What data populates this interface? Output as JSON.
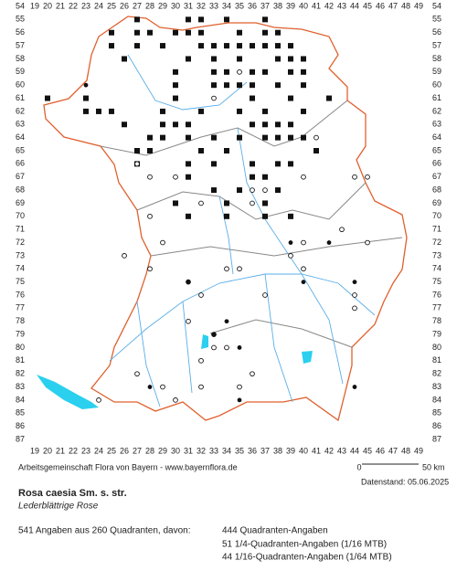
{
  "header": {
    "x_labels": [
      19,
      20,
      21,
      22,
      23,
      24,
      25,
      26,
      27,
      28,
      29,
      30,
      31,
      32,
      33,
      34,
      35,
      36,
      37,
      38,
      39,
      40,
      41,
      42,
      43,
      44,
      45,
      46,
      47,
      48,
      49
    ],
    "y_labels": [
      54,
      55,
      56,
      57,
      58,
      59,
      60,
      61,
      62,
      63,
      64,
      65,
      66,
      67,
      68,
      69,
      70,
      71,
      72,
      73,
      74,
      75,
      76,
      77,
      78,
      79,
      80,
      81,
      82,
      83,
      84,
      85,
      86,
      87
    ]
  },
  "footer": {
    "source": "Arbeitsgemeinschaft Flora von Bayern - www.bayernflora.de",
    "scale_start": "0",
    "scale_end": "50 km",
    "date": "Datenstand: 05.06.2025"
  },
  "species": {
    "name": "Rosa caesia Sm. s. str.",
    "common_name": "Lederblättrige Rose"
  },
  "summary": {
    "total": "541 Angaben aus 260 Quadranten, davon:",
    "lines": [
      "444 Quadranten-Angaben",
      "51 1/4-Quadranten-Angaben (1/16 MTB)",
      "44 1/16-Quadranten-Angaben (1/64 MTB)"
    ]
  }
}
